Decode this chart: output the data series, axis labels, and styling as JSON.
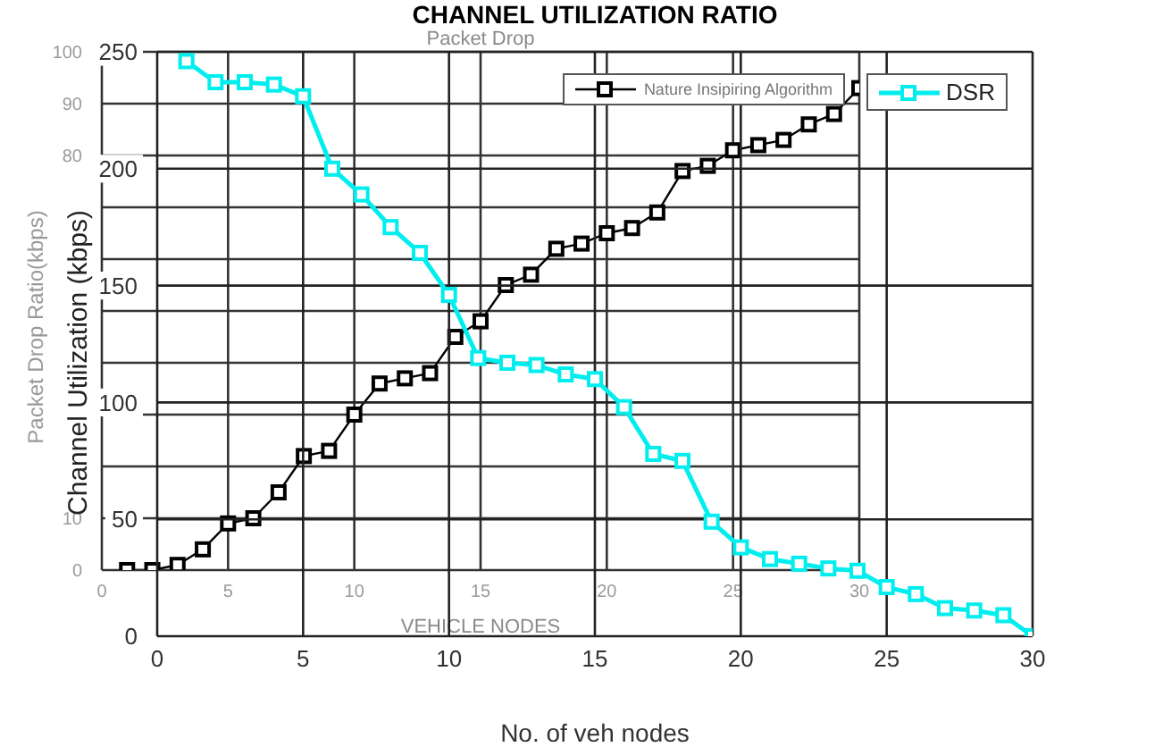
{
  "chart_data": [
    {
      "type": "line",
      "title": "Packet Drop",
      "xlabel": "VEHICLE NODES",
      "ylabel": "Packet Drop Ratio(kbps)",
      "x": [
        1,
        2,
        3,
        4,
        5,
        6,
        7,
        8,
        9,
        10,
        11,
        12,
        13,
        14,
        15,
        16,
        17,
        18,
        19,
        20,
        21,
        22,
        23,
        24,
        25,
        26,
        27,
        28,
        29,
        30
      ],
      "series": [
        {
          "name": "Nature Insipiring Algorithm",
          "color": "#000000",
          "values": [
            0,
            0,
            1,
            4,
            9,
            10,
            15,
            22,
            23,
            30,
            36,
            37,
            38,
            45,
            48,
            55,
            57,
            62,
            63,
            65,
            66,
            69,
            77,
            78,
            81,
            82,
            83,
            86,
            88,
            93
          ]
        }
      ],
      "xlim": [
        0,
        30
      ],
      "xticks": [
        0,
        5,
        10,
        15,
        20,
        25,
        30
      ],
      "ylim": [
        0,
        100
      ],
      "yticks": [
        0,
        10,
        {
          "value": 20,
          "label": null
        },
        {
          "value": 30,
          "label": null
        },
        {
          "value": 40,
          "label": null
        },
        {
          "value": 50,
          "label": null
        },
        {
          "value": 60,
          "label": null
        },
        {
          "value": 70,
          "label": null
        },
        80,
        90,
        100
      ],
      "grid": true,
      "legend": "top right",
      "marker": "square"
    },
    {
      "type": "line",
      "title": "CHANNEL UTILIZATION RATIO",
      "xlabel": "No. of veh nodes",
      "ylabel": "Channel Utilization (kbps)",
      "x": [
        1,
        2,
        3,
        4,
        5,
        6,
        7,
        8,
        9,
        10,
        11,
        12,
        13,
        14,
        15,
        16,
        17,
        18,
        19,
        20,
        21,
        22,
        23,
        24,
        25,
        26,
        27,
        28,
        29,
        30
      ],
      "series": [
        {
          "name": "DSR",
          "color": "#00eeee",
          "values": [
            246,
            237,
            237,
            236,
            231,
            200,
            189,
            175,
            164,
            146,
            119,
            117,
            116,
            112,
            110,
            98,
            78,
            75,
            49,
            38,
            33,
            31,
            29,
            28,
            21,
            18,
            12,
            11,
            9,
            0
          ]
        }
      ],
      "xlim": [
        0,
        30
      ],
      "xticks": [
        0,
        5,
        10,
        15,
        20,
        25,
        30
      ],
      "ylim": [
        0,
        250
      ],
      "yticks": [
        0,
        50,
        100,
        150,
        200,
        250
      ],
      "grid": true,
      "legend": "top right",
      "marker": "square"
    }
  ]
}
